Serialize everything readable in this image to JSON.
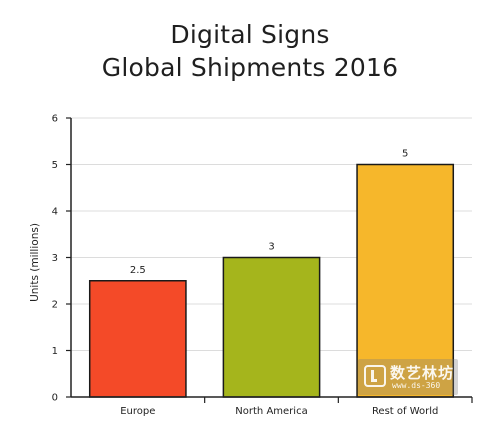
{
  "chart_data": {
    "type": "bar",
    "title": [
      "Digital Signs",
      "Global Shipments 2016"
    ],
    "xlabel": "",
    "ylabel": "Units (millions)",
    "categories": [
      "Europe",
      "North America",
      "Rest of World"
    ],
    "values": [
      2.5,
      3,
      5
    ],
    "data_labels": [
      "2.5",
      "3",
      "5"
    ],
    "colors": [
      "#f44a28",
      "#a5b51c",
      "#f6b72b"
    ],
    "ylim": [
      0,
      6
    ],
    "yticks": [
      0,
      1,
      2,
      3,
      4,
      5,
      6
    ],
    "grid": true,
    "legend": "none"
  },
  "watermark": {
    "text": "数艺林坊",
    "url": "www.ds-360"
  }
}
